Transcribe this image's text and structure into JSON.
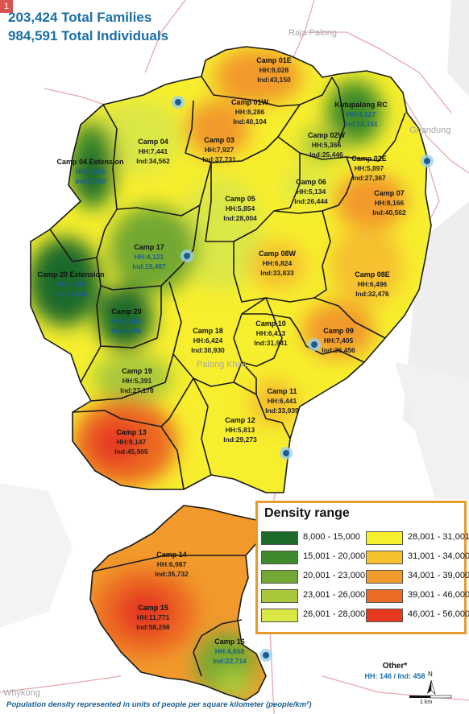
{
  "badge": "1",
  "totals": {
    "families": "203,424 Total Families",
    "individuals": "984,591 Total Individuals"
  },
  "places": {
    "raja_palong": "Raja Palong",
    "ghandung": "Ghandung",
    "palong_khali": "Palong Khali",
    "whykong": "Whykong"
  },
  "camps": {
    "c01e": {
      "name": "Camp 01E",
      "hh": "HH:9,028",
      "ind": "Ind:43,150"
    },
    "c01w": {
      "name": "Camp 01W",
      "hh": "HH:8,286",
      "ind": "Ind:40,104"
    },
    "kutu": {
      "name": "Kutupalong RC",
      "hh": "HH:4,127",
      "ind": "Ind:18,151"
    },
    "c02w": {
      "name": "Camp 02W",
      "hh": "HH:5,366",
      "ind": "Ind:25,446"
    },
    "c02e": {
      "name": "Camp 02E",
      "hh": "HH:5,897",
      "ind": "Ind:27,367"
    },
    "c03": {
      "name": "Camp 03",
      "hh": "HH:7,927",
      "ind": "Ind:37,731"
    },
    "c04": {
      "name": "Camp 04",
      "hh": "HH:7,441",
      "ind": "Ind:34,562"
    },
    "c04x": {
      "name": "Camp 04 Extension",
      "hh": "HH:1,936",
      "ind": "Ind:9,160"
    },
    "c05": {
      "name": "Camp 05",
      "hh": "HH:5,854",
      "ind": "Ind:28,004"
    },
    "c06": {
      "name": "Camp 06",
      "hh": "HH:5,134",
      "ind": "Ind:26,444"
    },
    "c07": {
      "name": "Camp 07",
      "hh": "HH:8,166",
      "ind": "Ind:40,562"
    },
    "c08w": {
      "name": "Camp 08W",
      "hh": "HH:6,824",
      "ind": "Ind:33,833"
    },
    "c08e": {
      "name": "Camp 08E",
      "hh": "HH:6,496",
      "ind": "Ind:32,476"
    },
    "c17": {
      "name": "Camp 17",
      "hh": "HH:4,121",
      "ind": "Ind:19,497"
    },
    "c20x": {
      "name": "Camp 20 Extension",
      "hh": "HH:2,296",
      "ind": "Ind:11,086"
    },
    "c20": {
      "name": "Camp 20",
      "hh": "HH:1,495",
      "ind": "Ind:6,996"
    },
    "c18": {
      "name": "Camp 18",
      "hh": "HH:6,424",
      "ind": "Ind:30,930"
    },
    "c10": {
      "name": "Camp 10",
      "hh": "HH:6,413",
      "ind": "Ind:31,941"
    },
    "c09": {
      "name": "Camp 09",
      "hh": "HH:7,405",
      "ind": "Ind:36,456"
    },
    "c19": {
      "name": "Camp 19",
      "hh": "HH:5,391",
      "ind": "Ind:27,178"
    },
    "c11": {
      "name": "Camp 11",
      "hh": "HH:6,441",
      "ind": "Ind:33,039"
    },
    "c12": {
      "name": "Camp 12",
      "hh": "HH:5,813",
      "ind": "Ind:29,273"
    },
    "c13": {
      "name": "Camp 13",
      "hh": "HH:9,147",
      "ind": "Ind:45,905"
    },
    "c14": {
      "name": "Camp 14",
      "hh": "HH:6,987",
      "ind": "Ind:35,732"
    },
    "c15": {
      "name": "Camp 15",
      "hh": "HH:11,771",
      "ind": "Ind:58,298"
    },
    "c16": {
      "name": "Camp 16",
      "hh": "HH:4,658",
      "ind": "Ind:22,714"
    }
  },
  "legend": {
    "title": "Density range",
    "items": [
      {
        "label": "8,000 - 15,000",
        "color": "#1e6a2a"
      },
      {
        "label": "15,001 - 20,000",
        "color": "#3e8a2c"
      },
      {
        "label": "20,001 - 23,000",
        "color": "#72a833"
      },
      {
        "label": "23,001 - 26,000",
        "color": "#a8c83a"
      },
      {
        "label": "26,001 - 28,000",
        "color": "#dbe747"
      },
      {
        "label": "28,001 - 31,001",
        "color": "#f7ee2e"
      },
      {
        "label": "31,001 - 34,000",
        "color": "#f6c02e"
      },
      {
        "label": "34,001 - 39,000",
        "color": "#f29a2c"
      },
      {
        "label": "39,001 - 46,000",
        "color": "#ec6a22"
      },
      {
        "label": "46,001 - 56,000",
        "color": "#e63a20"
      }
    ]
  },
  "other": {
    "label": "Other*",
    "value": "HH: 146 / Ind: 458"
  },
  "footnote": "Population density represented in units of people per square kilometer (people/km²)",
  "scale": {
    "label": "1 km"
  },
  "north": {
    "label": "N"
  }
}
